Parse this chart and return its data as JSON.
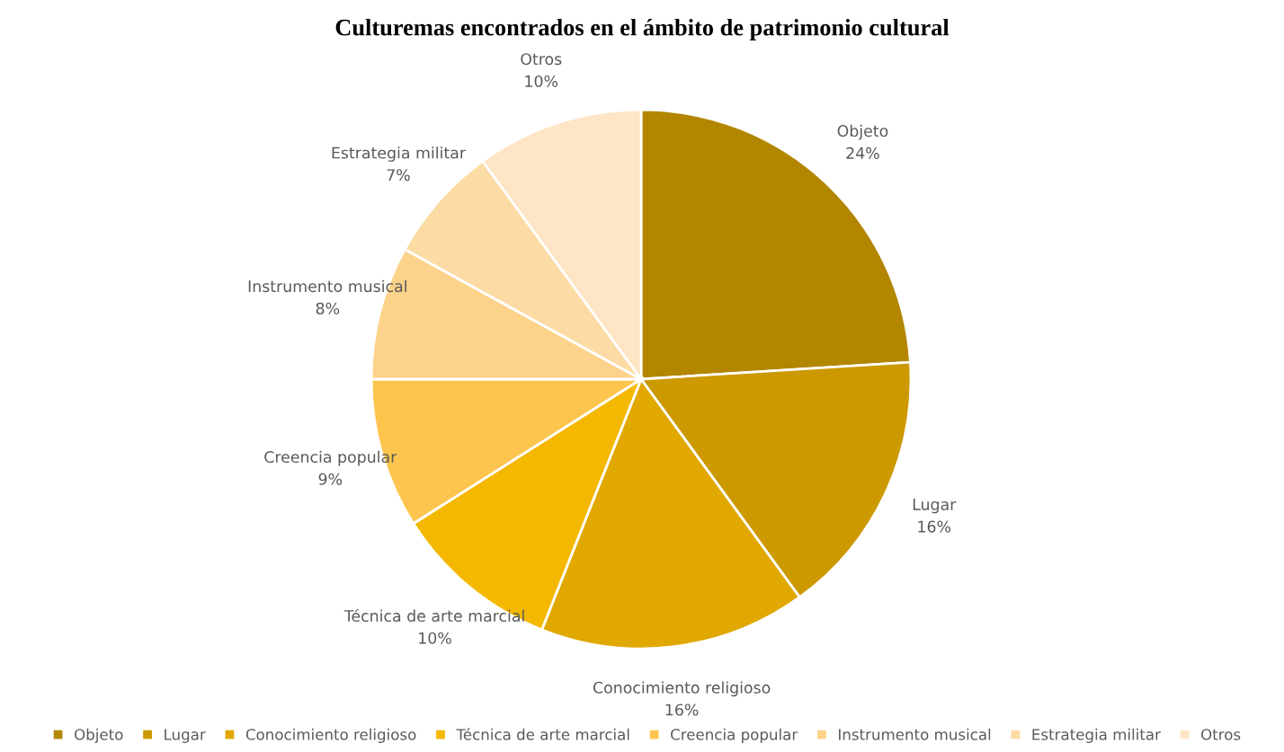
{
  "chart_data": {
    "type": "pie",
    "title": "Culturemas encontrados en el ámbito de patrimonio cultural",
    "categories": [
      "Objeto",
      "Lugar",
      "Conocimiento religioso",
      "Técnica de arte marcial",
      "Creencia popular",
      "Instrumento musical",
      "Estrategia militar",
      "Otros"
    ],
    "values": [
      24,
      16,
      16,
      10,
      9,
      8,
      7,
      10
    ],
    "colors": [
      "#b38600",
      "#cc9900",
      "#e0a800",
      "#f4b800",
      "#fdc54e",
      "#fdd28a",
      "#fddba4",
      "#fde5c5"
    ],
    "value_labels": [
      "24%",
      "16%",
      "16%",
      "10%",
      "9%",
      "8%",
      "7%",
      "10%"
    ],
    "legend": "bottom"
  }
}
